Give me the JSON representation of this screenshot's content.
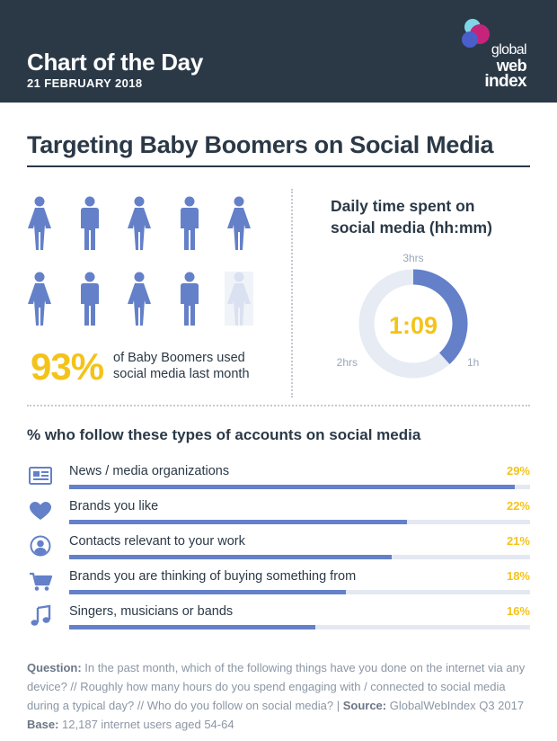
{
  "header": {
    "title": "Chart of the Day",
    "date": "21 FEBRUARY 2018",
    "logo": {
      "line1": "global",
      "line2": "web",
      "line3": "index"
    }
  },
  "main_title": "Targeting Baby Boomers on Social Media",
  "colors": {
    "accent_blue": "#6380c9",
    "accent_yellow": "#f4c31a",
    "header_bg": "#2b3947",
    "faded_person": "#eef1f7"
  },
  "stat": {
    "percent": "93%",
    "text": "of Baby Boomers used social media last month"
  },
  "donut": {
    "title": "Daily time spent on social media (hh:mm)",
    "value": "1:09",
    "tick_labels": [
      "1h",
      "2hrs",
      "3hrs"
    ]
  },
  "bars_title": "% who follow these types of accounts on social media",
  "footer": {
    "question_label": "Question:",
    "question_text": "In the past month, which of the following things have you done on the internet via any device? // Roughly how many hours do you spend engaging with / connected to social media during a typical day? // Who do you follow on social media? |",
    "source_label": "Source:",
    "source_text": "GlobalWebIndex Q3 2017",
    "base_label": "Base:",
    "base_text": "12,187 internet users aged 54-64"
  },
  "chart_data": [
    {
      "type": "pictogram",
      "total_icons": 10,
      "icon_order": [
        "female",
        "male",
        "female",
        "male",
        "female",
        "female",
        "male",
        "female",
        "male",
        "female"
      ],
      "value_percent": 93
    },
    {
      "type": "pie",
      "title": "Daily time spent on social media (hh:mm)",
      "value_label": "1:09",
      "value_hours": 1.15,
      "scale_max_hours": 3
    },
    {
      "type": "bar",
      "title": "% who follow these types of accounts on social media",
      "categories": [
        "News / media organizations",
        "Brands you like",
        "Contacts relevant to your work",
        "Brands you are thinking of buying something from",
        "Singers, musicians or bands"
      ],
      "values": [
        29,
        22,
        21,
        18,
        16
      ],
      "value_labels": [
        "29%",
        "22%",
        "21%",
        "18%",
        "16%"
      ],
      "icons": [
        "newspaper-icon",
        "heart-icon",
        "user-circle-icon",
        "shopping-cart-icon",
        "music-note-icon"
      ],
      "xlim": [
        0,
        30
      ]
    }
  ]
}
